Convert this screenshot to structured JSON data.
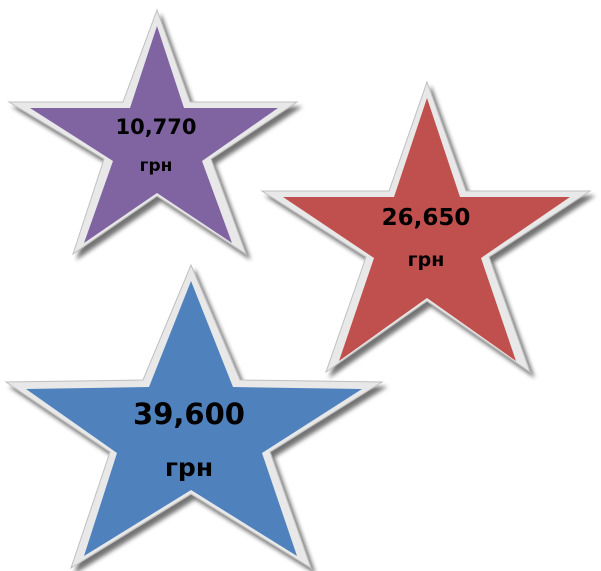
{
  "stars": [
    {
      "id": "star-purple",
      "value": "10,770",
      "unit": "грн",
      "color": "#8064a2",
      "stroke": "#604a7b"
    },
    {
      "id": "star-red",
      "value": "26,650",
      "unit": "грн",
      "color": "#c0504d",
      "stroke": "#943634"
    },
    {
      "id": "star-blue",
      "value": "39,600",
      "unit": "грн",
      "color": "#4f81bd",
      "stroke": "#385d8a"
    }
  ],
  "colors": {
    "background": "#ffffff",
    "shadow": "#7f7f7f",
    "bevel": "#d9d9d9"
  }
}
